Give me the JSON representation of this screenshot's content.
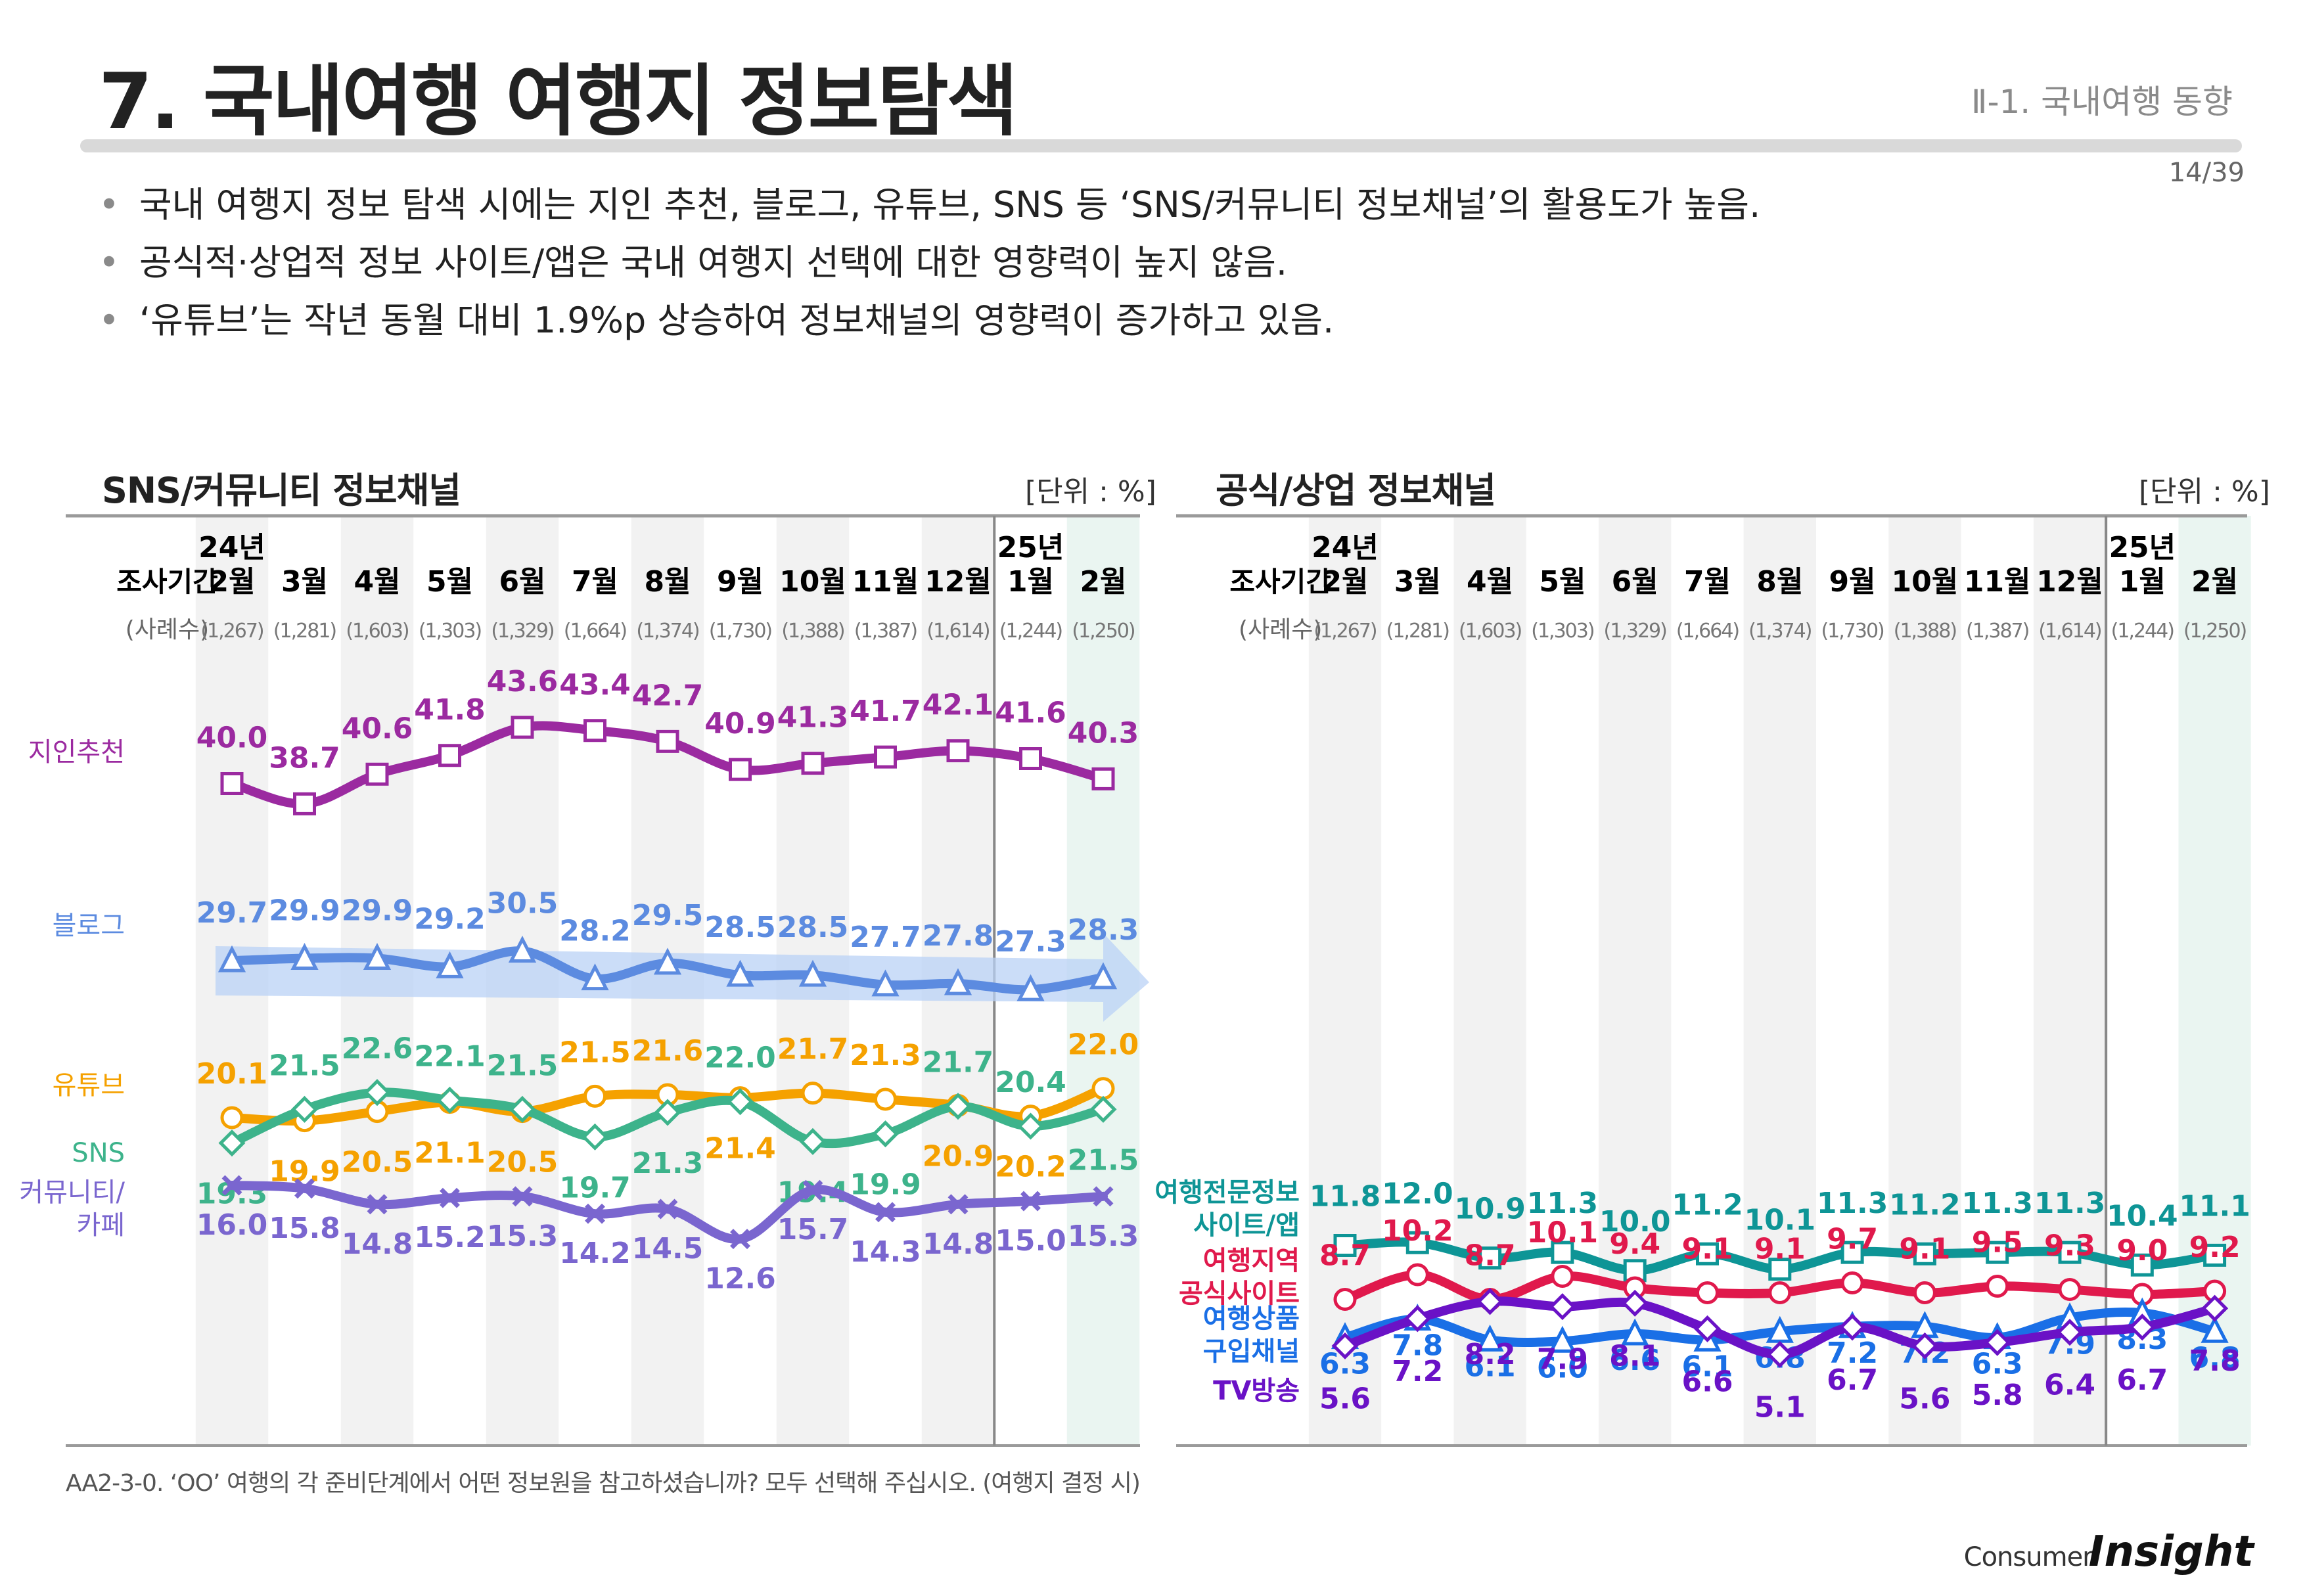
{
  "header": {
    "title": "7. 국내여행 여행지 정보탐색",
    "section": "Ⅱ-1. 국내여행 동향",
    "page": "14/39"
  },
  "bullets": [
    "국내 여행지 정보 탐색 시에는 지인 추천, 블로그, 유튜브, SNS 등 ‘SNS/커뮤니티 정보채널’의 활용도가 높음.",
    "공식적·상업적 정보 사이트/앱은 국내 여행지 선택에 대한 영향력이 높지 않음.",
    "‘유튜브’는 작년 동월 대비 1.9%p 상승하여 정보채널의 영향력이 증가하고 있음."
  ],
  "footnote": "AA2-3-0. ‘OO’ 여행의 각 준비단계에서 어떤 정보원을 참고하셨습니까? 모두 선택해 주십시오. (여행지 결정 시)",
  "logo": {
    "line1": "Consumer",
    "line2": "Insight"
  },
  "period_label": "조사기간",
  "n_label": "(사례수)",
  "months": [
    "2월",
    "3월",
    "4월",
    "5월",
    "6월",
    "7월",
    "8월",
    "9월",
    "10월",
    "11월",
    "12월",
    "1월",
    "2월"
  ],
  "year_labels": {
    "0": "24년",
    "11": "25년"
  },
  "sample_sizes": [
    "(1,267)",
    "(1,281)",
    "(1,603)",
    "(1,303)",
    "(1,329)",
    "(1,664)",
    "(1,374)",
    "(1,730)",
    "(1,388)",
    "(1,387)",
    "(1,614)",
    "(1,244)",
    "(1,250)"
  ],
  "chart_data": [
    {
      "type": "line",
      "title": "SNS/커뮤니티 정보채널",
      "unit_label": "[단위 : %]",
      "categories": [
        "24년 2월",
        "3월",
        "4월",
        "5월",
        "6월",
        "7월",
        "8월",
        "9월",
        "10월",
        "11월",
        "12월",
        "25년 1월",
        "2월"
      ],
      "ylim": [
        10,
        46
      ],
      "series": [
        {
          "name": "지인추천",
          "color": "#9b2aa0",
          "marker": "square",
          "values": [
            40.0,
            38.7,
            40.6,
            41.8,
            43.6,
            43.4,
            42.7,
            40.9,
            41.3,
            41.7,
            42.1,
            41.6,
            40.3
          ],
          "value_labels": [
            "40.0",
            "38.7",
            "40.6",
            "41.8",
            "43.6",
            "43.4",
            "42.7",
            "40.9",
            "41.3",
            "41.7",
            "42.1",
            "41.6",
            "40.3"
          ]
        },
        {
          "name": "블로그",
          "color": "#5c8be0",
          "marker": "triangle",
          "values": [
            29.7,
            29.9,
            29.9,
            29.2,
            30.5,
            28.2,
            29.5,
            28.5,
            28.5,
            27.7,
            27.8,
            27.3,
            28.3
          ],
          "value_labels": [
            "29.7",
            "29.9",
            "29.9",
            "29.2",
            "30.5",
            "28.2",
            "29.5",
            "28.5",
            "28.5",
            "27.7",
            "27.8",
            "27.3",
            "28.3"
          ]
        },
        {
          "name": "유튜브",
          "color": "#f5a100",
          "marker": "circle",
          "values": [
            20.1,
            19.9,
            20.5,
            21.1,
            20.5,
            21.5,
            21.6,
            21.4,
            21.7,
            21.3,
            20.9,
            20.2,
            22.0
          ],
          "value_labels": [
            "20.1",
            "19.9",
            "20.5",
            "21.1",
            "20.5",
            "21.5",
            "21.6",
            "21.4",
            "21.7",
            "21.3",
            "20.9",
            "20.2",
            "22.0"
          ]
        },
        {
          "name": "SNS",
          "color": "#3db38b",
          "marker": "diamond",
          "values": [
            19.3,
            21.5,
            22.6,
            22.1,
            21.5,
            19.7,
            21.3,
            22.0,
            19.4,
            19.9,
            21.7,
            20.4,
            21.5
          ],
          "value_labels": [
            "19.3",
            "21.5",
            "22.6",
            "22.1",
            "21.5",
            "19.7",
            "21.3",
            "22.0",
            "19.4",
            "19.9",
            "21.7",
            "20.4",
            "21.5"
          ]
        },
        {
          "name": "커뮤니티/카페",
          "color": "#7a66cf",
          "marker": "x",
          "values": [
            16.0,
            15.8,
            14.8,
            15.2,
            15.3,
            14.2,
            14.5,
            12.6,
            15.7,
            14.3,
            14.8,
            15.0,
            15.3
          ],
          "value_labels": [
            "16.0",
            "15.8",
            "14.8",
            "15.2",
            "15.3",
            "14.2",
            "14.5",
            "12.6",
            "15.7",
            "14.3",
            "14.8",
            "15.0",
            "15.3"
          ]
        }
      ]
    },
    {
      "type": "line",
      "title": "공식/상업 정보채널",
      "unit_label": "[단위 : %]",
      "categories": [
        "24년 2월",
        "3월",
        "4월",
        "5월",
        "6월",
        "7월",
        "8월",
        "9월",
        "10월",
        "11월",
        "12월",
        "25년 1월",
        "2월"
      ],
      "ylim": [
        0,
        30
      ],
      "series": [
        {
          "name": "여행전문정보 사이트/앱",
          "color": "#0e9596",
          "marker": "square",
          "values": [
            11.8,
            12.0,
            10.9,
            11.3,
            10.0,
            11.2,
            10.1,
            11.3,
            11.2,
            11.3,
            11.3,
            10.4,
            11.1
          ],
          "value_labels": [
            "11.8",
            "12.0",
            "10.9",
            "11.3",
            "10.0",
            "11.2",
            "10.1",
            "11.3",
            "11.2",
            "11.3",
            "11.3",
            "10.4",
            "11.1"
          ]
        },
        {
          "name": "여행지역 공식사이트",
          "color": "#e0194c",
          "marker": "circle",
          "values": [
            8.7,
            10.2,
            8.7,
            10.1,
            9.4,
            9.1,
            9.1,
            9.7,
            9.1,
            9.5,
            9.3,
            9.0,
            9.2
          ],
          "value_labels": [
            "8.7",
            "10.2",
            "8.7",
            "10.1",
            "9.4",
            "9.1",
            "9.1",
            "9.7",
            "9.1",
            "9.5",
            "9.3",
            "9.0",
            "9.2"
          ]
        },
        {
          "name": "여행상품 구입채널",
          "color": "#1a6fe6",
          "marker": "triangle",
          "values": [
            6.3,
            7.8,
            6.1,
            6.0,
            6.6,
            6.1,
            6.8,
            7.2,
            7.2,
            6.3,
            7.9,
            8.3,
            6.8
          ],
          "value_labels": [
            "6.3",
            "7.8",
            "6.1",
            "6.0",
            "6.6",
            "6.1",
            "6.8",
            "7.2",
            "7.2",
            "6.3",
            "7.9",
            "8.3",
            "6.8"
          ]
        },
        {
          "name": "TV방송",
          "color": "#6a12c6",
          "marker": "diamond",
          "values": [
            5.6,
            7.2,
            8.2,
            7.9,
            8.1,
            6.6,
            5.1,
            6.7,
            5.6,
            5.8,
            6.4,
            6.7,
            7.8
          ],
          "value_labels": [
            "5.6",
            "7.2",
            "8.2",
            "7.9",
            "8.1",
            "6.6",
            "5.1",
            "6.7",
            "5.6",
            "5.8",
            "6.4",
            "6.7",
            "7.8"
          ]
        }
      ]
    }
  ]
}
